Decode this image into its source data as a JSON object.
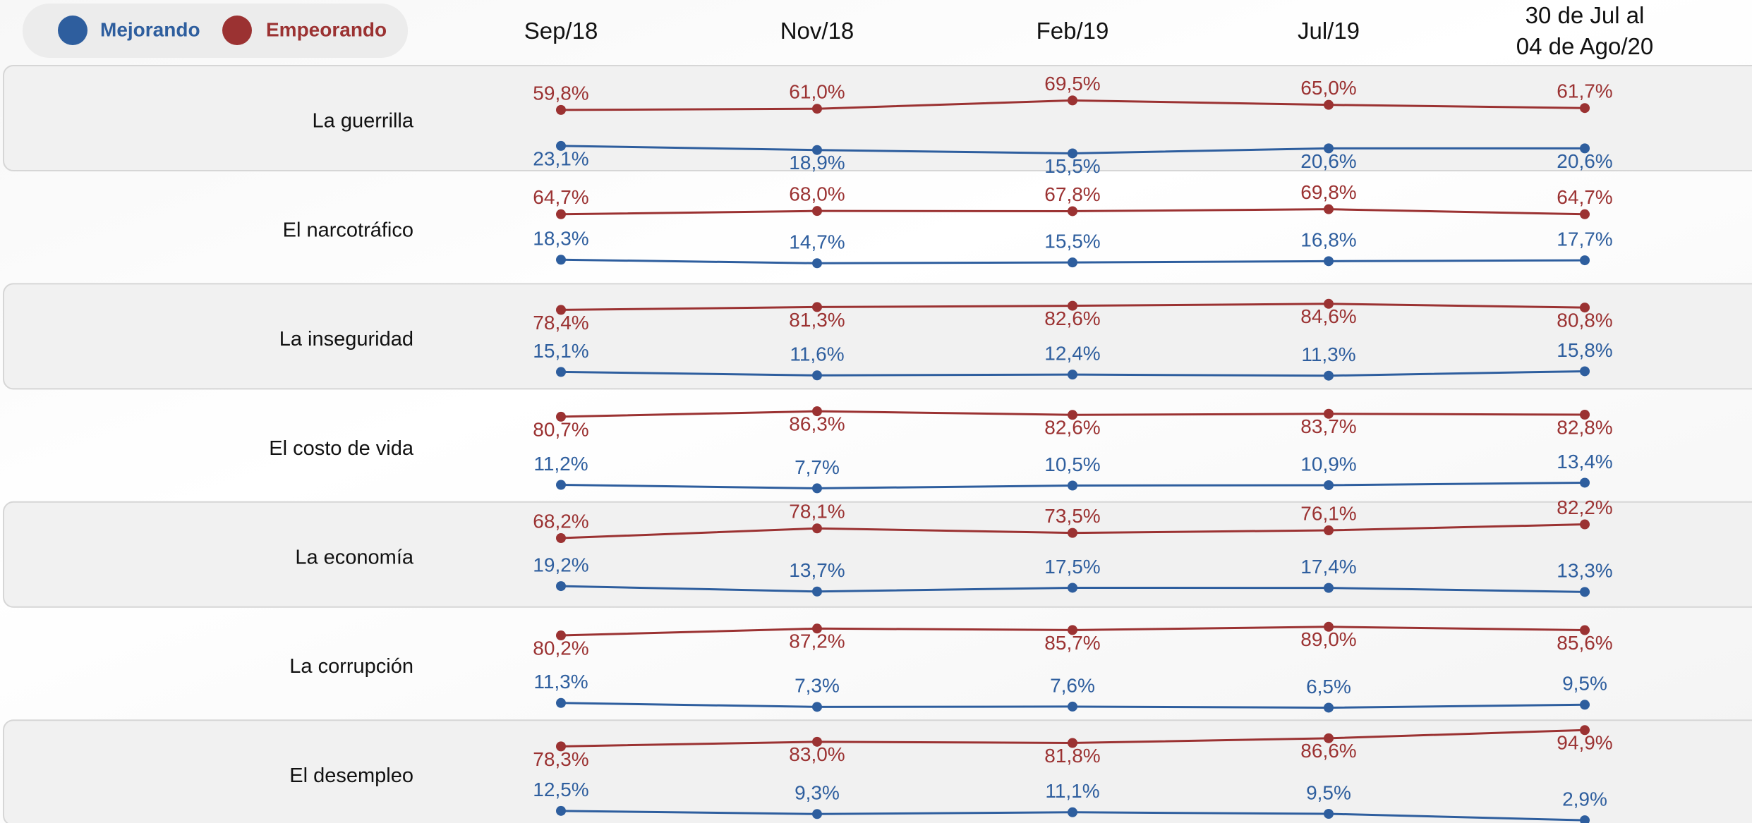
{
  "chart_data": {
    "type": "line",
    "categories": [
      "Sep/18",
      "Nov/18",
      "Feb/19",
      "Jul/19",
      "30 de Jul al\n04 de Ago/20"
    ],
    "ylim": [
      0,
      100
    ],
    "series": [
      {
        "name": "Mejorando",
        "color": "#2e5e9e"
      },
      {
        "name": "Empeorando",
        "color": "#9b3232"
      }
    ],
    "panels": [
      {
        "title": "La guerrilla",
        "series": [
          {
            "values": [
              23.1,
              18.9,
              15.5,
              20.6,
              20.6
            ],
            "value_labels": [
              "23,1%",
              "18,9%",
              "15,5%",
              "20,6%",
              "20,6%"
            ]
          },
          {
            "values": [
              59.8,
              61.0,
              69.5,
              65.0,
              61.7
            ],
            "value_labels": [
              "59,8%",
              "61,0%",
              "69,5%",
              "65,0%",
              "61,7%"
            ]
          }
        ]
      },
      {
        "title": "El narcotráfico",
        "series": [
          {
            "values": [
              18.3,
              14.7,
              15.5,
              16.8,
              17.7
            ],
            "value_labels": [
              "18,3%",
              "14,7%",
              "15,5%",
              "16,8%",
              "17,7%"
            ]
          },
          {
            "values": [
              64.7,
              68.0,
              67.8,
              69.8,
              64.7
            ],
            "value_labels": [
              "64,7%",
              "68,0%",
              "67,8%",
              "69,8%",
              "64,7%"
            ]
          }
        ]
      },
      {
        "title": "La inseguridad",
        "series": [
          {
            "values": [
              15.1,
              11.6,
              12.4,
              11.3,
              15.8
            ],
            "value_labels": [
              "15,1%",
              "11,6%",
              "12,4%",
              "11,3%",
              "15,8%"
            ]
          },
          {
            "values": [
              78.4,
              81.3,
              82.6,
              84.6,
              80.8
            ],
            "value_labels": [
              "78,4%",
              "81,3%",
              "82,6%",
              "84,6%",
              "80,8%"
            ]
          }
        ]
      },
      {
        "title": "El costo de vida",
        "series": [
          {
            "values": [
              11.2,
              7.7,
              10.5,
              10.9,
              13.4
            ],
            "value_labels": [
              "11,2%",
              "7,7%",
              "10,5%",
              "10,9%",
              "13,4%"
            ]
          },
          {
            "values": [
              80.7,
              86.3,
              82.6,
              83.7,
              82.8
            ],
            "value_labels": [
              "80,7%",
              "86,3%",
              "82,6%",
              "83,7%",
              "82,8%"
            ]
          }
        ]
      },
      {
        "title": "La economía",
        "series": [
          {
            "values": [
              19.2,
              13.7,
              17.5,
              17.4,
              13.3
            ],
            "value_labels": [
              "19,2%",
              "13,7%",
              "17,5%",
              "17,4%",
              "13,3%"
            ]
          },
          {
            "values": [
              68.2,
              78.1,
              73.5,
              76.1,
              82.2
            ],
            "value_labels": [
              "68,2%",
              "78,1%",
              "73,5%",
              "76,1%",
              "82,2%"
            ]
          }
        ]
      },
      {
        "title": "La corrupción",
        "series": [
          {
            "values": [
              11.3,
              7.3,
              7.6,
              6.5,
              9.5
            ],
            "value_labels": [
              "11,3%",
              "7,3%",
              "7,6%",
              "6,5%",
              "9,5%"
            ]
          },
          {
            "values": [
              80.2,
              87.2,
              85.7,
              89.0,
              85.6
            ],
            "value_labels": [
              "80,2%",
              "87,2%",
              "85,7%",
              "89,0%",
              "85,6%"
            ]
          }
        ]
      },
      {
        "title": "El desempleo",
        "series": [
          {
            "values": [
              12.5,
              9.3,
              11.1,
              9.5,
              2.9
            ],
            "value_labels": [
              "12,5%",
              "9,3%",
              "11,1%",
              "9,5%",
              "2,9%"
            ]
          },
          {
            "values": [
              78.3,
              83.0,
              81.8,
              86.6,
              94.9
            ],
            "value_labels": [
              "78,3%",
              "83,0%",
              "81,8%",
              "86,6%",
              "94,9%"
            ]
          }
        ]
      }
    ]
  }
}
